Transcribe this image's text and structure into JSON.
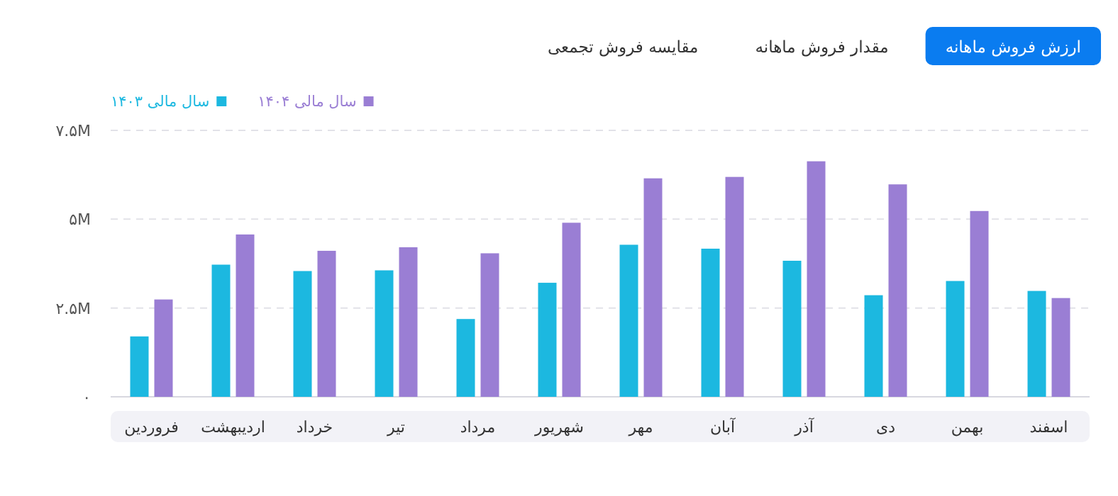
{
  "chart_data": {
    "type": "bar",
    "annotations": [
      "ارزش فروش ماهانه",
      "مقدار فروش ماهانه",
      "مقایسه فروش تجمعی"
    ],
    "categories": [
      "فروردین",
      "اردیبهشت",
      "خرداد",
      "تیر",
      "مرداد",
      "شهریور",
      "مهر",
      "آبان",
      "آذر",
      "دی",
      "بهمن",
      "اسفند"
    ],
    "series": [
      {
        "name": "سال مالی ۱۴۰۳",
        "color": "#1cb8e0",
        "values": [
          1.7,
          3.72,
          3.54,
          3.56,
          2.19,
          3.21,
          4.28,
          4.17,
          3.83,
          2.86,
          3.26,
          2.98
        ]
      },
      {
        "name": "سال مالی ۱۴۰۴",
        "color": "#9a7ed4",
        "values": [
          2.74,
          4.57,
          4.11,
          4.21,
          4.04,
          4.9,
          6.15,
          6.19,
          6.63,
          5.98,
          5.23,
          2.78
        ]
      }
    ],
    "ylim": [
      0,
      7.5
    ],
    "yticks": [
      {
        "value": 0,
        "label": "۰"
      },
      {
        "value": 2.5,
        "label": "۲.۵M"
      },
      {
        "value": 5,
        "label": "۵M"
      },
      {
        "value": 7.5,
        "label": "۷.۵M"
      }
    ],
    "grid": "y",
    "legend": "top left"
  }
}
